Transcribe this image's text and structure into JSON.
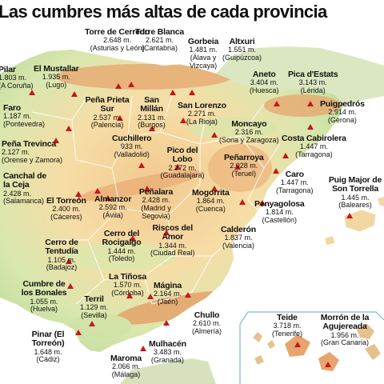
{
  "title": "Las cumbres más altas de cada provincia",
  "colors": {
    "sea": "#ffffff",
    "land_low": "#cfe3a6",
    "land_mid": "#f3d9a0",
    "land_high": "#e59a64",
    "peak": "#c8151b",
    "border": "#ffffff",
    "gulf": "#bfe3f2"
  },
  "peaks": [
    {
      "id": "pilar",
      "name": "Pilar",
      "height": "1.803 m.",
      "province": "(A Coruña)"
    },
    {
      "id": "torre-cerredo",
      "name": "Torre de Cerredo",
      "height": "2.648 m.",
      "province": "(Asturias y León)"
    },
    {
      "id": "torre-blanca",
      "name": "Torre Blanca",
      "height": "2.621 m.",
      "province": "(Cantabria)"
    },
    {
      "id": "gorbeia",
      "name": "Gorbeia",
      "height": "1.481 m.",
      "province": "(Álava y Vizcaya)"
    },
    {
      "id": "altxuri",
      "name": "Altxuri",
      "height": "1.551 m.",
      "province": "(Guipúzcoa)"
    },
    {
      "id": "mustallar",
      "name": "El Mustallar",
      "height": "1.935 m.",
      "province": "(Lugo)"
    },
    {
      "id": "aneto",
      "name": "Aneto",
      "height": "3.404 m.",
      "province": "(Huesca)"
    },
    {
      "id": "pica-estats",
      "name": "Pica d'Estats",
      "height": "3.143 m.",
      "province": "(Lérida)"
    },
    {
      "id": "faro",
      "name": "Faro",
      "height": "1.187 m.",
      "province": "(Pontevedra)"
    },
    {
      "id": "pena-prieta",
      "name": "Peña Prieta Sur",
      "height": "2.537 m.",
      "province": "(Palencia)"
    },
    {
      "id": "san-millan",
      "name": "San Millán",
      "height": "2.131 m.",
      "province": "(Burgos)"
    },
    {
      "id": "san-lorenzo",
      "name": "San Lorenzo",
      "height": "2.271 m.",
      "province": "(La Rioja)"
    },
    {
      "id": "puigpedros",
      "name": "Puigpedrós",
      "height": "2.914 m.",
      "province": "(Gerona)"
    },
    {
      "id": "pena-trevinca",
      "name": "Peña Trevinca",
      "height": "2.127 m.",
      "province": "(Orense y Zamora)"
    },
    {
      "id": "moncayo",
      "name": "Moncayo",
      "height": "2.316 m.",
      "province": "(Soria y Zaragoza)"
    },
    {
      "id": "cuchillero",
      "name": "Cuchillero",
      "height": "933 m.",
      "province": "(Valladolid)"
    },
    {
      "id": "costa-cabirolera",
      "name": "Costa Cabirolera",
      "height": "1.447 m.",
      "province": "(Tarragona)"
    },
    {
      "id": "pico-lobo",
      "name": "Pico del Lobo",
      "height": "2.272 m.",
      "province": "(Guadalajara)"
    },
    {
      "id": "penarroya",
      "name": "Peñarroya",
      "height": "2.028 m.",
      "province": "(Teruel)"
    },
    {
      "id": "canchal",
      "name": "Canchal de la Ceja",
      "height": "2.428 m.",
      "province": "(Salamanca)"
    },
    {
      "id": "caro",
      "name": "Caro",
      "height": "1.447 m.",
      "province": "(Tarragona)"
    },
    {
      "id": "puig-major",
      "name": "Puig Major de Son Torrella",
      "height": "1.445 m.",
      "province": "(Baleares)"
    },
    {
      "id": "el-torreon",
      "name": "El Torreón",
      "height": "2.400 m.",
      "province": "(Cáceres)"
    },
    {
      "id": "almanzor",
      "name": "Almanzor",
      "height": "2.592 m.",
      "province": "(Ávila)"
    },
    {
      "id": "penalara",
      "name": "Peñalara",
      "height": "2.428 m.",
      "province": "(Madrid y Segovia)"
    },
    {
      "id": "mogorrita",
      "name": "Mogorrita",
      "height": "1.864 m.",
      "province": "(Cuenca)"
    },
    {
      "id": "penyagolosa",
      "name": "Penyagolosa",
      "height": "1.814 m.",
      "province": "(Castellón)"
    },
    {
      "id": "rocigalgo",
      "name": "Cerro del Rocigalgo",
      "height": "1.444 m.",
      "province": "(Toledo)"
    },
    {
      "id": "riscos-amor",
      "name": "Riscos del Amor",
      "height": "1.344 m.",
      "province": "(Ciudad Real)"
    },
    {
      "id": "calderon",
      "name": "Calderón",
      "height": "1.837 m.",
      "province": "(Valencia)"
    },
    {
      "id": "tentudia",
      "name": "Cerro de Tentudía",
      "height": "1.105 m.",
      "province": "(Badajoz)"
    },
    {
      "id": "tinosa",
      "name": "La Tiñosa",
      "height": "1.570 m.",
      "province": "(Córdoba)"
    },
    {
      "id": "bonales",
      "name": "Cumbre de los Bonales",
      "height": "1.055 m.",
      "province": "(Huelva)"
    },
    {
      "id": "magina",
      "name": "Mágina",
      "height": "2.164 m.",
      "province": "(Jaén)"
    },
    {
      "id": "terril",
      "name": "Terril",
      "height": "1.129 m.",
      "province": "(Sevilla)"
    },
    {
      "id": "chullo",
      "name": "Chullo",
      "height": "2.610 m.",
      "province": "(Almería)"
    },
    {
      "id": "teide",
      "name": "Teide",
      "height": "3.718 m.",
      "province": "(Tenerife)"
    },
    {
      "id": "morron",
      "name": "Morrón de la Agujereada",
      "height": "1.956 m.",
      "province": "(Gran Canaria)"
    },
    {
      "id": "pinar",
      "name": "Pinar (El Torreón)",
      "height": "1.648 m.",
      "province": "(Cádiz)"
    },
    {
      "id": "mulhacen",
      "name": "Mulhacén",
      "height": "3.483 m.",
      "province": "(Granada)"
    },
    {
      "id": "maroma",
      "name": "Maroma",
      "height": "2.066 m.",
      "province": "(Málaga)"
    }
  ]
}
